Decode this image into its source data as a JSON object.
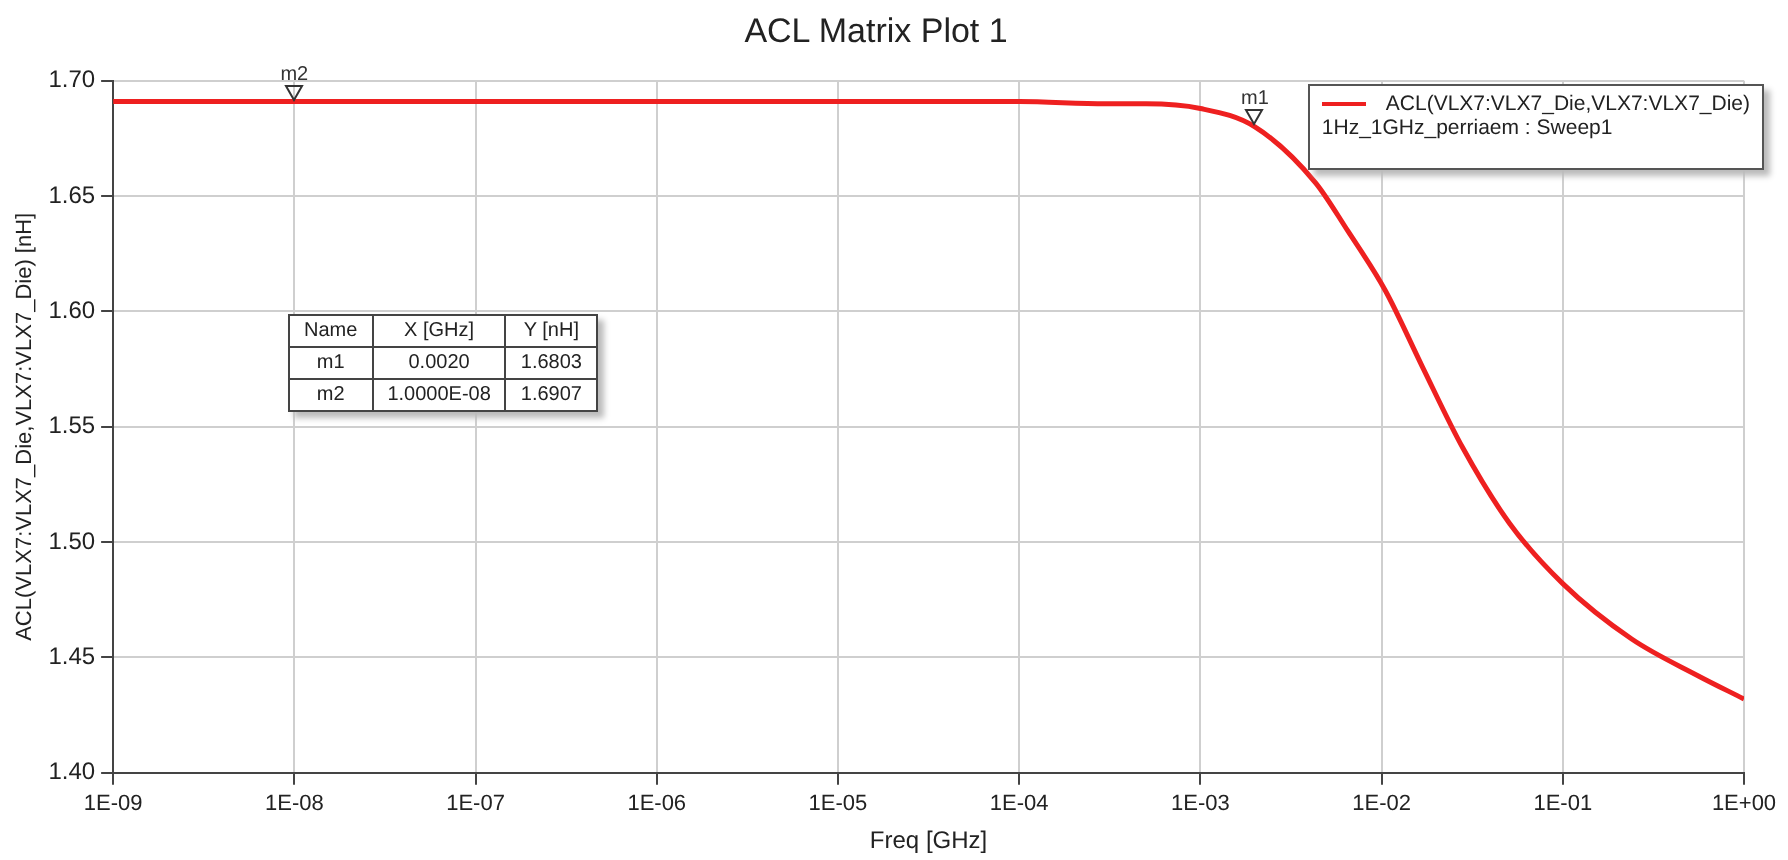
{
  "chart_data": {
    "type": "line",
    "title": "ACL Matrix Plot 1",
    "xlabel": "Freq [GHz]",
    "ylabel": "ACL(VLX7:VLX7_Die,VLX7:VLX7_Die) [nH]",
    "legend_title": "1Hz_1GHz_perriaem : Sweep1",
    "x": [
      1e-09,
      1e-08,
      1e-07,
      1e-06,
      1e-05,
      0.0001,
      0.0003,
      0.0005,
      0.001,
      0.002,
      0.0043,
      0.0065,
      0.0105,
      0.0168,
      0.028,
      0.051,
      0.1,
      0.24,
      0.56,
      1
    ],
    "series": [
      {
        "name": "ACL(VLX7:VLX7_Die,VLX7:VLX7_Die)",
        "color": "#ee2020",
        "values": [
          1.691,
          1.691,
          1.691,
          1.691,
          1.691,
          1.691,
          1.69,
          1.69,
          1.688,
          1.68,
          1.656,
          1.635,
          1.609,
          1.576,
          1.541,
          1.508,
          1.482,
          1.458,
          1.442,
          1.432
        ]
      }
    ],
    "log": "x",
    "xlim": [
      1e-09,
      1
    ],
    "ylim": [
      1.4,
      1.7
    ],
    "xticks": [
      {
        "value": 1e-09,
        "label": "1E-09"
      },
      {
        "value": 1e-08,
        "label": "1E-08"
      },
      {
        "value": 1e-07,
        "label": "1E-07"
      },
      {
        "value": 1e-06,
        "label": "1E-06"
      },
      {
        "value": 1e-05,
        "label": "1E-05"
      },
      {
        "value": 0.0001,
        "label": "1E-04"
      },
      {
        "value": 0.001,
        "label": "1E-03"
      },
      {
        "value": 0.01,
        "label": "1E-02"
      },
      {
        "value": 0.1,
        "label": "1E-01"
      },
      {
        "value": 1,
        "label": "1E+00"
      }
    ],
    "yticks": [
      {
        "value": 1.4,
        "label": "1.40"
      },
      {
        "value": 1.45,
        "label": "1.45"
      },
      {
        "value": 1.5,
        "label": "1.50"
      },
      {
        "value": 1.55,
        "label": "1.55"
      },
      {
        "value": 1.6,
        "label": "1.60"
      },
      {
        "value": 1.65,
        "label": "1.65"
      },
      {
        "value": 1.7,
        "label": "1.70"
      }
    ],
    "grid": true,
    "legend": "top right",
    "marker": "none",
    "line_style": "solid",
    "annotations": [
      {
        "text": "m1",
        "x": 0.002,
        "y": 1.6803
      },
      {
        "text": "m2",
        "x": 1e-08,
        "y": 1.6907
      },
      "Name",
      "X [GHz]",
      "Y [nH]",
      "m1",
      "0.0020",
      "1.6803",
      "m2",
      "1.0000E-08",
      "1.6907"
    ]
  }
}
